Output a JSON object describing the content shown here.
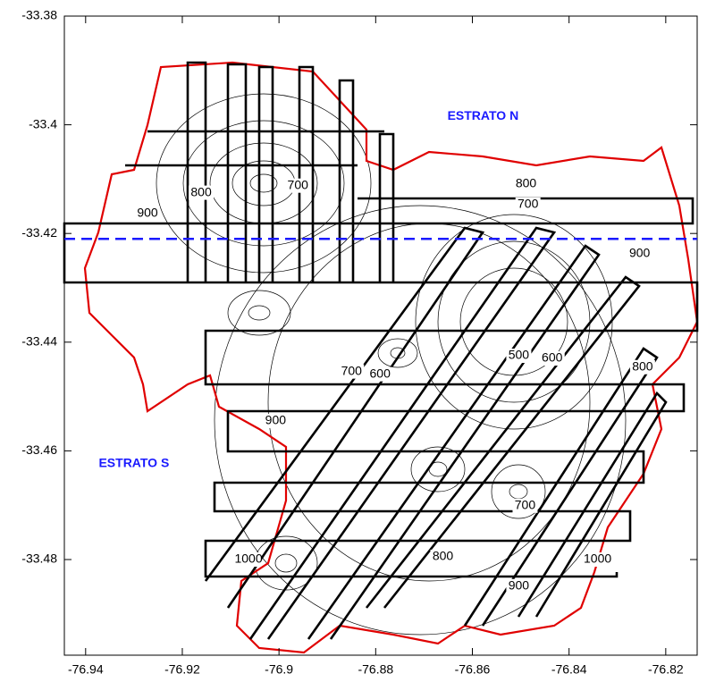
{
  "chart_data": {
    "type": "map",
    "xlim": [
      -76.9444,
      -76.8135
    ],
    "ylim": [
      -33.4976,
      -33.38
    ],
    "xticks": [
      -76.94,
      -76.92,
      -76.9,
      -76.88,
      -76.86,
      -76.84,
      -76.82
    ],
    "yticks": [
      -33.38,
      -33.4,
      -33.42,
      -33.44,
      -33.46,
      -33.48
    ],
    "divider_lat": -33.421,
    "divider_color": "#1a1aff",
    "annotations": [
      {
        "text": "ESTRATO N",
        "x": -76.8578,
        "y": -33.3985
      },
      {
        "text": "ESTRATO S",
        "x": -76.93,
        "y": -33.4624
      }
    ],
    "contour_labels": [
      {
        "text": "800",
        "x": -76.9161,
        "y": -33.4125
      },
      {
        "text": "700",
        "x": -76.8961,
        "y": -33.4112
      },
      {
        "text": "900",
        "x": -76.9272,
        "y": -33.4163
      },
      {
        "text": "800",
        "x": -76.8489,
        "y": -33.4109
      },
      {
        "text": "700",
        "x": -76.8485,
        "y": -33.4147
      },
      {
        "text": "900",
        "x": -76.8254,
        "y": -33.4237
      },
      {
        "text": "700",
        "x": -76.885,
        "y": -33.4454
      },
      {
        "text": "600",
        "x": -76.8791,
        "y": -33.4459
      },
      {
        "text": "500",
        "x": -76.8504,
        "y": -33.4425
      },
      {
        "text": "600",
        "x": -76.8435,
        "y": -33.443
      },
      {
        "text": "800",
        "x": -76.8248,
        "y": -33.4446
      },
      {
        "text": "900",
        "x": -76.9007,
        "y": -33.4545
      },
      {
        "text": "700",
        "x": -76.8491,
        "y": -33.4701
      },
      {
        "text": "800",
        "x": -76.8661,
        "y": -33.4795
      },
      {
        "text": "900",
        "x": -76.8504,
        "y": -33.4849
      },
      {
        "text": "1000",
        "x": -76.8341,
        "y": -33.48
      },
      {
        "text": "1000",
        "x": -76.9063,
        "y": -33.48
      }
    ]
  }
}
